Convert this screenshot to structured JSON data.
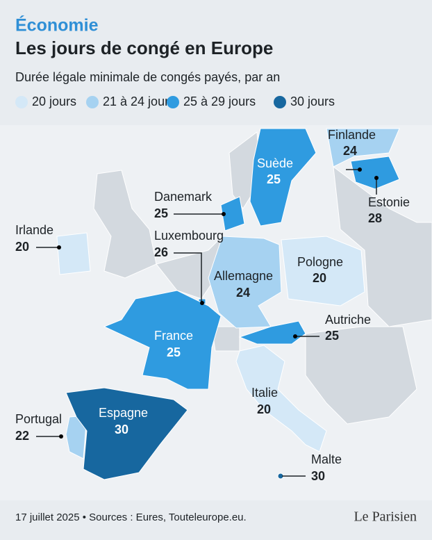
{
  "header": {
    "kicker": "Économie",
    "title": "Les jours de congé en Europe",
    "subtitle": "Durée légale minimale de congés payés, par an"
  },
  "legend": [
    {
      "label": "20 jours",
      "color": "#d4e8f7"
    },
    {
      "label": "21 à 24 jours",
      "color": "#a6d2f1"
    },
    {
      "label": "25 à 29 jours",
      "color": "#2f9be0"
    },
    {
      "label": "30 jours",
      "color": "#17679f"
    }
  ],
  "countries": [
    {
      "name": "Finlande",
      "value": 24,
      "color": "#a6d2f1"
    },
    {
      "name": "Suède",
      "value": 25,
      "color": "#2f9be0"
    },
    {
      "name": "Estonie",
      "value": 28,
      "color": "#2f9be0"
    },
    {
      "name": "Danemark",
      "value": 25,
      "color": "#2f9be0"
    },
    {
      "name": "Irlande",
      "value": 20,
      "color": "#d4e8f7"
    },
    {
      "name": "Luxembourg",
      "value": 26,
      "color": "#2f9be0"
    },
    {
      "name": "Allemagne",
      "value": 24,
      "color": "#a6d2f1"
    },
    {
      "name": "Pologne",
      "value": 20,
      "color": "#d4e8f7"
    },
    {
      "name": "France",
      "value": 25,
      "color": "#2f9be0"
    },
    {
      "name": "Autriche",
      "value": 25,
      "color": "#2f9be0"
    },
    {
      "name": "Italie",
      "value": 20,
      "color": "#d4e8f7"
    },
    {
      "name": "Portugal",
      "value": 22,
      "color": "#a6d2f1"
    },
    {
      "name": "Espagne",
      "value": 30,
      "color": "#17679f"
    },
    {
      "name": "Malte",
      "value": 30,
      "color": "#17679f"
    }
  ],
  "footer": {
    "source": "17 juillet 2025 • Sources : Eures, Touteleurope.eu.",
    "brand": "Le Parisien"
  }
}
